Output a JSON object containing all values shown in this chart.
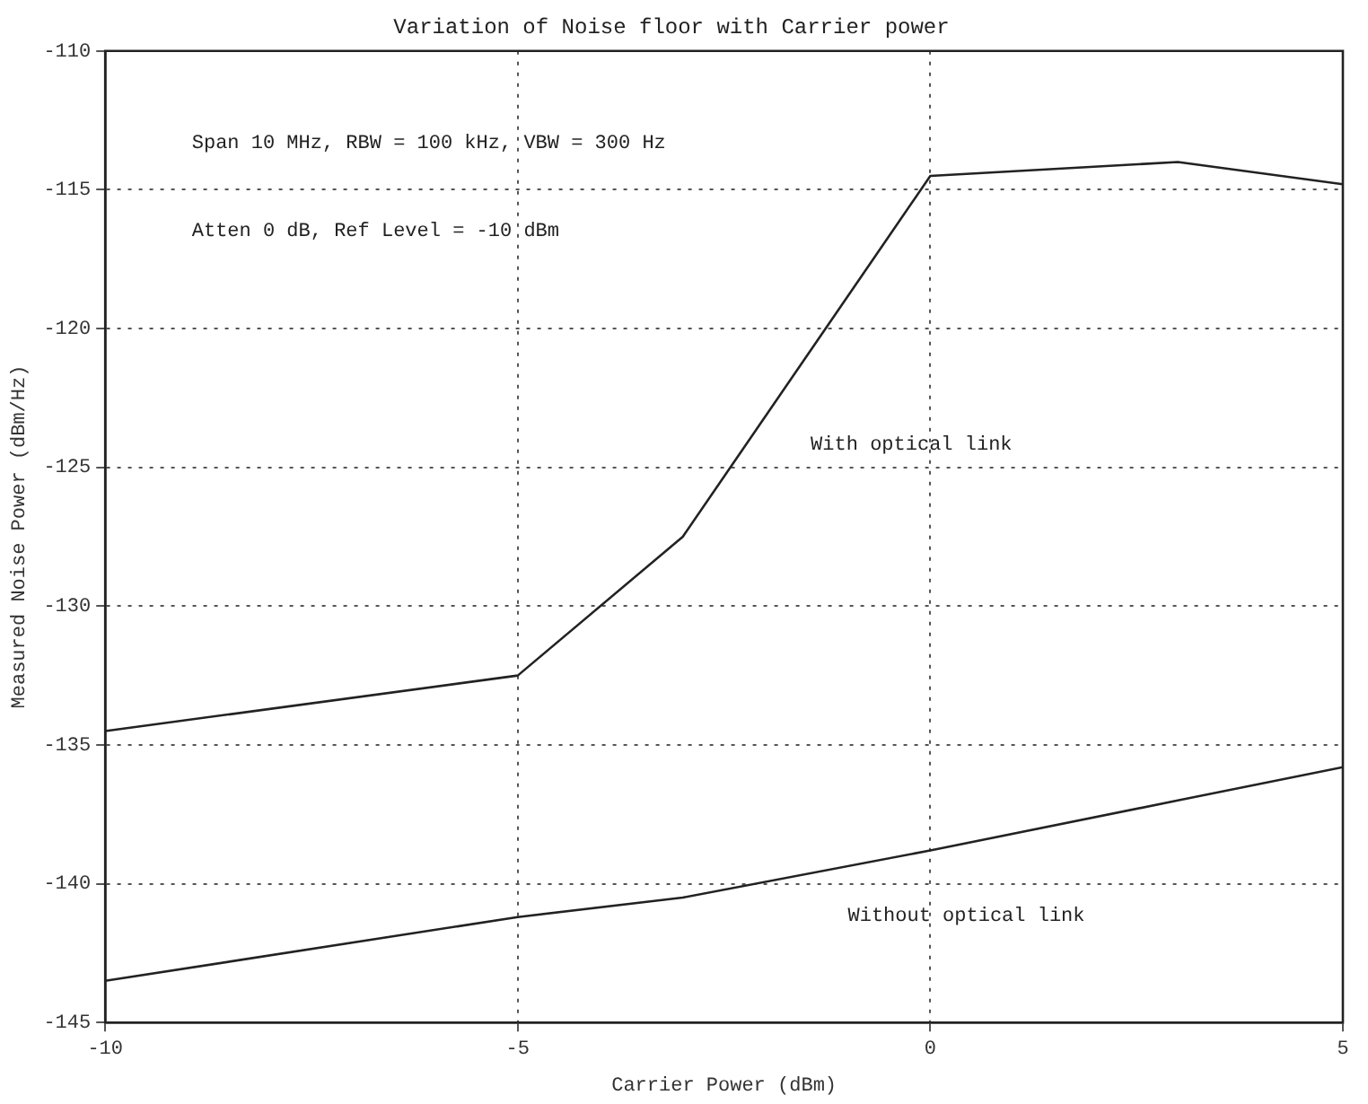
{
  "chart_data": {
    "type": "line",
    "title": "Variation of Noise floor with Carrier power",
    "xlabel": "Carrier Power (dBm)",
    "ylabel": "Measured Noise Power (dBm/Hz)",
    "series": [
      {
        "name": "With optical link",
        "color": "#222222",
        "x": [
          -10,
          -5,
          -3,
          0,
          3,
          5
        ],
        "values": [
          -134.5,
          -132.5,
          -127.5,
          -114.5,
          -114,
          -114.8
        ]
      },
      {
        "name": "Without optical link",
        "color": "#222222",
        "x": [
          -10,
          -5,
          -3,
          0,
          3,
          5
        ],
        "values": [
          -143.5,
          -141.2,
          -140.5,
          -138.8,
          -137,
          -135.8
        ]
      }
    ],
    "xlim": [
      -10,
      5
    ],
    "xticks": [
      -10,
      -5,
      0,
      5
    ],
    "ylim": [
      -145,
      -110
    ],
    "yticks": [
      -145,
      -140,
      -135,
      -130,
      -125,
      -120,
      -115,
      -110
    ],
    "grid": true,
    "legend": false,
    "marker": "none",
    "line_style": "solid",
    "annotations": [
      "Span 10 MHz, RBW = 100 kHz, VBW = 300 Hz",
      "Atten 0 dB, Ref Level = -10 dBm"
    ]
  }
}
